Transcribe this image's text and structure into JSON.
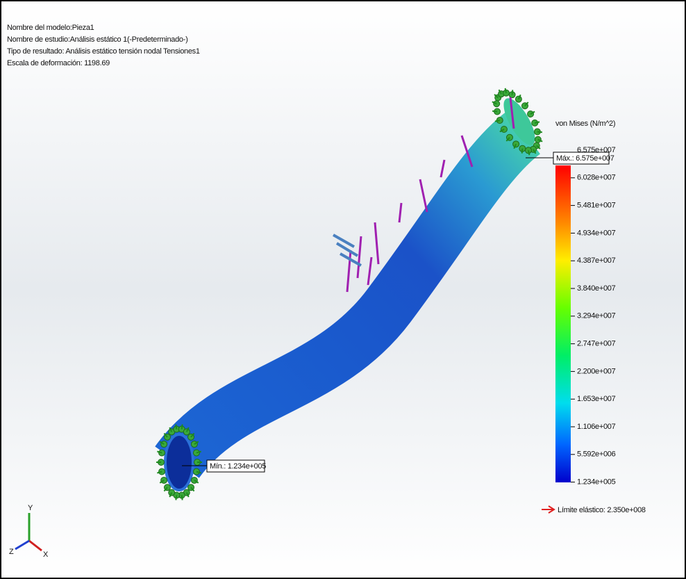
{
  "info": {
    "model": "Nombre del modelo:Pieza1",
    "study": "Nombre de estudio:Análisis estático 1(-Predeterminado-)",
    "result": "Tipo de resultado: Análisis estático tensión nodal Tensiones1",
    "scale": "Escala de deformación: 1198.69"
  },
  "legend": {
    "title": "von Mises (N/m^2)",
    "labels": [
      "6.575e+007",
      "6.028e+007",
      "5.481e+007",
      "4.934e+007",
      "4.387e+007",
      "3.840e+007",
      "3.294e+007",
      "2.747e+007",
      "2.200e+007",
      "1.653e+007",
      "1.106e+007",
      "5.592e+006",
      "1.234e+005"
    ]
  },
  "max_label": "Máx.: 6.575e+007",
  "min_label": "Mín.: 1.234e+005",
  "yield_label": "Límite elástico: 2.350e+008",
  "triad": {
    "x": "X",
    "y": "Y",
    "z": "Z"
  }
}
